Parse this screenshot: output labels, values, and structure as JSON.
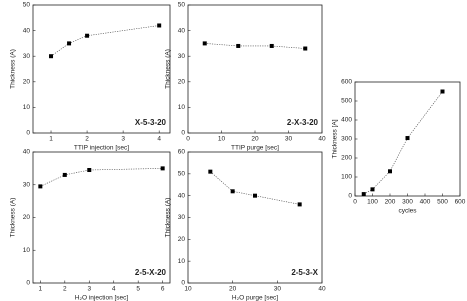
{
  "chart_data": [
    {
      "type": "line",
      "x_label": "TTIP injection [sec]",
      "y_label": "Thickness (A)",
      "annotation": "X-5-3-20",
      "x": [
        1,
        1.5,
        2,
        4
      ],
      "values": [
        30,
        35,
        38,
        42
      ],
      "color": "#000000",
      "xlim": [
        0.5,
        4.3
      ],
      "xticks": [
        1,
        2,
        3,
        4
      ],
      "ylim": [
        0,
        50
      ],
      "yticks": [
        0,
        10,
        20,
        30,
        40,
        50
      ]
    },
    {
      "type": "line",
      "x_label": "TTIP purge [sec]",
      "y_label": "Thickness (A)",
      "annotation": "2-X-3-20",
      "x": [
        5,
        15,
        25,
        35
      ],
      "values": [
        35,
        34,
        34,
        33
      ],
      "color": "#000000",
      "xlim": [
        0,
        40
      ],
      "xticks": [
        0,
        10,
        20,
        30,
        40
      ],
      "ylim": [
        0,
        50
      ],
      "yticks": [
        0,
        10,
        20,
        30,
        40,
        50
      ]
    },
    {
      "type": "line",
      "x_label": "H₂O injection [sec]",
      "y_label": "Thickness (A)",
      "annotation": "2-5-X-20",
      "x": [
        1,
        2,
        3,
        6
      ],
      "values": [
        29.5,
        33,
        34.5,
        35
      ],
      "color": "#000000",
      "xlim": [
        0.7,
        6.3
      ],
      "xticks": [
        1,
        2,
        3,
        4,
        5,
        6
      ],
      "ylim": [
        0,
        40
      ],
      "yticks": [
        0,
        10,
        20,
        30,
        40
      ]
    },
    {
      "type": "line",
      "x_label": "H₂O purge [sec]",
      "y_label": "Thickness (A)",
      "annotation": "2-5-3-X",
      "x": [
        15,
        20,
        25,
        35
      ],
      "values": [
        51,
        42,
        40,
        36
      ],
      "color": "#000000",
      "xlim": [
        10,
        40
      ],
      "xticks": [
        10,
        20,
        30,
        40
      ],
      "ylim": [
        0,
        60
      ],
      "yticks": [
        0,
        10,
        20,
        30,
        40,
        50,
        60
      ]
    },
    {
      "type": "line",
      "x_label": "cycles",
      "y_label": "Thickness [A]",
      "x": [
        50,
        100,
        200,
        300,
        500
      ],
      "values": [
        10,
        35,
        130,
        305,
        550
      ],
      "color": "#000000",
      "xlim": [
        0,
        600
      ],
      "xticks": [
        0,
        100,
        200,
        300,
        400,
        500,
        600
      ],
      "ylim": [
        0,
        600
      ],
      "yticks": [
        0,
        100,
        200,
        300,
        400,
        500,
        600
      ]
    }
  ]
}
